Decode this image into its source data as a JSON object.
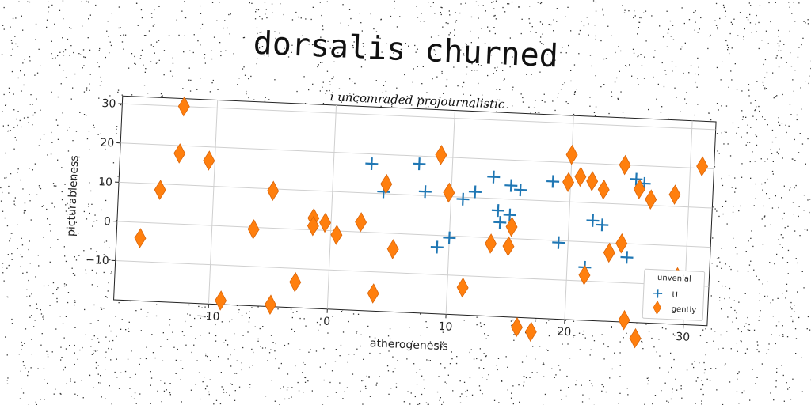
{
  "chart_data": {
    "type": "scatter",
    "title": "dorsalis churned",
    "subtitle": "i uncomraded projournalistic",
    "xlabel": "atherogenesis",
    "ylabel": "picturableness",
    "xlim": [
      -18,
      32
    ],
    "ylim": [
      -20,
      32
    ],
    "xticks": [
      -10,
      0,
      10,
      20,
      30
    ],
    "yticks": [
      -10,
      0,
      10,
      20,
      30
    ],
    "grid": true,
    "legend": {
      "title": "unvenial",
      "placement": "lower-right"
    },
    "series": [
      {
        "name": "U",
        "marker": "plus",
        "color": "#1f77b4",
        "points": [
          [
            3.2,
            17.5
          ],
          [
            4.3,
            10.5
          ],
          [
            7.2,
            18.0
          ],
          [
            7.8,
            11.0
          ],
          [
            9.0,
            -3.0
          ],
          [
            10.0,
            -0.5
          ],
          [
            11.0,
            9.5
          ],
          [
            12.0,
            11.5
          ],
          [
            13.5,
            15.5
          ],
          [
            14.0,
            7.0
          ],
          [
            14.2,
            4.0
          ],
          [
            15.0,
            6.0
          ],
          [
            15.0,
            13.5
          ],
          [
            15.8,
            12.5
          ],
          [
            18.5,
            15.0
          ],
          [
            19.2,
            -0.5
          ],
          [
            21.5,
            -6.5
          ],
          [
            22.0,
            5.5
          ],
          [
            22.8,
            4.5
          ],
          [
            25.0,
            -3.5
          ],
          [
            25.5,
            16.5
          ],
          [
            26.2,
            15.5
          ]
        ]
      },
      {
        "name": "gently",
        "marker": "diamond",
        "color": "#ff7f0e",
        "points": [
          [
            -16.0,
            -4.0
          ],
          [
            -14.5,
            8.5
          ],
          [
            -13.0,
            18.0
          ],
          [
            -12.8,
            30.0
          ],
          [
            -10.5,
            16.5
          ],
          [
            -9.0,
            -19.0
          ],
          [
            -6.5,
            -0.5
          ],
          [
            -5.0,
            9.5
          ],
          [
            -4.8,
            -19.5
          ],
          [
            -2.8,
            -13.5
          ],
          [
            -1.5,
            3.0
          ],
          [
            -1.5,
            1.0
          ],
          [
            -0.5,
            2.0
          ],
          [
            0.5,
            -1.0
          ],
          [
            2.5,
            2.5
          ],
          [
            3.8,
            -15.5
          ],
          [
            4.5,
            12.5
          ],
          [
            5.3,
            -4.0
          ],
          [
            9.0,
            20.5
          ],
          [
            9.8,
            11.0
          ],
          [
            11.3,
            -13.0
          ],
          [
            13.5,
            -1.5
          ],
          [
            15.2,
            3.0
          ],
          [
            15.0,
            -2.0
          ],
          [
            16.0,
            -22.5
          ],
          [
            17.2,
            -23.5
          ],
          [
            19.8,
            15.0
          ],
          [
            20.0,
            22.0
          ],
          [
            20.8,
            16.5
          ],
          [
            21.5,
            -8.5
          ],
          [
            21.8,
            15.5
          ],
          [
            22.8,
            13.5
          ],
          [
            23.5,
            -2.5
          ],
          [
            24.5,
            0.0
          ],
          [
            24.5,
            20.0
          ],
          [
            25.0,
            -19.5
          ],
          [
            25.8,
            14.0
          ],
          [
            26.0,
            -24.0
          ],
          [
            26.8,
            11.5
          ],
          [
            27.0,
            -13.5
          ],
          [
            28.8,
            13.0
          ],
          [
            29.3,
            -8.0
          ],
          [
            31.0,
            20.5
          ]
        ]
      }
    ]
  }
}
